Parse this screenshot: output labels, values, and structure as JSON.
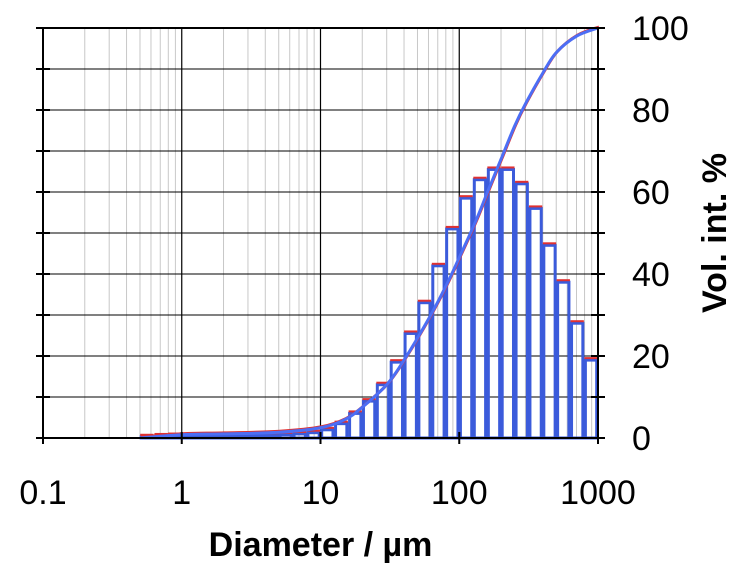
{
  "chart_data": {
    "type": "bar",
    "title": "",
    "xlabel": "Diameter / µm",
    "ylabel": "Vol. int. %",
    "x_scale": "log",
    "xlim": [
      0.1,
      1000
    ],
    "ylim": [
      0,
      100
    ],
    "x_ticks": [
      0.1,
      1,
      10,
      100,
      1000
    ],
    "x_tick_labels": [
      "0.1",
      "1",
      "10",
      "100",
      "1000"
    ],
    "y_ticks": [
      0,
      20,
      40,
      60,
      80,
      100
    ],
    "y_tick_labels": [
      "0",
      "20",
      "40",
      "60",
      "80",
      "100"
    ],
    "y_axis_side": "right",
    "grid": true,
    "legend": "none",
    "series": [
      {
        "kind": "histogram",
        "color": "#3b5bdb",
        "top_color": "#e03131",
        "x": [
          0.56,
          0.71,
          0.89,
          1.12,
          1.41,
          1.78,
          2.24,
          2.82,
          3.55,
          4.47,
          5.62,
          7.08,
          8.91,
          11.2,
          14.1,
          17.8,
          22.4,
          28.2,
          35.5,
          44.7,
          56.2,
          70.8,
          89.1,
          112,
          141,
          178,
          224,
          282,
          355,
          447,
          562,
          708,
          891
        ],
        "values": [
          0.3,
          0.5,
          0.6,
          0.6,
          0.6,
          0.6,
          0.6,
          0.6,
          0.7,
          0.7,
          0.8,
          1.0,
          1.3,
          2.0,
          3.5,
          6.0,
          9.0,
          13.0,
          18.5,
          25.5,
          33.0,
          42.0,
          51.0,
          58.5,
          63.0,
          65.5,
          65.5,
          62.0,
          56.0,
          47.0,
          38.0,
          28.0,
          19.0
        ]
      },
      {
        "kind": "cumulative",
        "color": "#4c6ef5",
        "x": [
          0.5,
          1,
          2,
          5,
          10,
          15,
          20,
          30,
          40,
          60,
          80,
          100,
          130,
          160,
          200,
          250,
          300,
          400,
          500,
          700,
          1000
        ],
        "values": [
          0,
          0.8,
          1.0,
          1.4,
          2.5,
          4.5,
          7.5,
          13.0,
          19.0,
          29.0,
          37.0,
          44.0,
          52.5,
          60.0,
          68.0,
          76.0,
          81.5,
          89.0,
          94.0,
          98.0,
          100
        ]
      }
    ]
  }
}
